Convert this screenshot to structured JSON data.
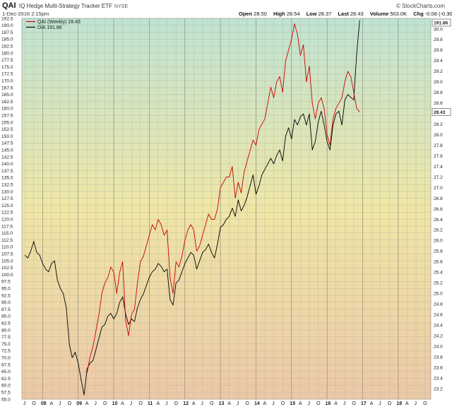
{
  "header": {
    "ticker": "QAI",
    "name": "IQ Hedge Multi-Strategy Tracker ETF",
    "exchange": "NYSE",
    "date": "1-Dec-2016 2:15pm",
    "brand": "© StockCharts.com",
    "quote": [
      {
        "label": "Open",
        "value": "28.50"
      },
      {
        "label": "High",
        "value": "28.54"
      },
      {
        "label": "Low",
        "value": "28.37"
      },
      {
        "label": "Last",
        "value": "28.43"
      },
      {
        "label": "Volume",
        "value": "503.0K"
      },
      {
        "label": "Chg",
        "value": "-0.08 (-0.30%)"
      }
    ]
  },
  "chart_data": {
    "type": "line",
    "title": "QAI IQ Hedge Multi-Strategy Tracker ETF",
    "legend": {
      "placement": "top-left",
      "entries": [
        "QAI (Weekly) 28.43",
        "DIA 191.86"
      ]
    },
    "grid": true,
    "left_axis": {
      "series": "DIA",
      "range": [
        55.0,
        192.5
      ],
      "ticks": [
        "192.5",
        "190.0",
        "187.5",
        "185.0",
        "182.5",
        "180.0",
        "177.5",
        "175.0",
        "172.5",
        "170.0",
        "167.5",
        "165.0",
        "162.5",
        "160.0",
        "157.5",
        "155.0",
        "152.5",
        "150.0",
        "147.5",
        "145.0",
        "142.5",
        "140.0",
        "137.5",
        "135.0",
        "132.5",
        "130.0",
        "127.5",
        "125.0",
        "122.5",
        "120.0",
        "117.5",
        "115.0",
        "112.5",
        "110.0",
        "107.5",
        "105.0",
        "102.5",
        "100.0",
        "97.5",
        "95.0",
        "92.5",
        "90.0",
        "87.5",
        "85.0",
        "82.5",
        "80.0",
        "77.5",
        "75.0",
        "72.5",
        "70.0",
        "67.5",
        "65.0",
        "62.5",
        "60.0",
        "57.5",
        "55.0"
      ]
    },
    "right_axis": {
      "series": "QAI",
      "range": [
        23.0,
        30.2
      ],
      "ticks": [
        "30.0",
        "29.8",
        "29.6",
        "29.4",
        "29.2",
        "29.0",
        "28.8",
        "28.6",
        "28.4",
        "28.2",
        "28.0",
        "27.8",
        "27.6",
        "27.4",
        "27.2",
        "27.0",
        "26.8",
        "26.6",
        "26.4",
        "26.2",
        "26.0",
        "25.8",
        "25.6",
        "25.4",
        "25.2",
        "25.0",
        "24.8",
        "24.6",
        "24.4",
        "24.2",
        "24.0",
        "23.8",
        "23.6",
        "23.4",
        "23.2"
      ]
    },
    "x_axis": {
      "ticks": [
        "J",
        "O",
        "08",
        "A",
        "J",
        "O",
        "09",
        "A",
        "J",
        "O",
        "10",
        "A",
        "J",
        "O",
        "11",
        "A",
        "J",
        "O",
        "12",
        "A",
        "J",
        "O",
        "13",
        "A",
        "J",
        "O",
        "14",
        "A",
        "J",
        "O",
        "15",
        "A",
        "J",
        "O",
        "16",
        "A",
        "J",
        "O",
        "17",
        "A",
        "J",
        "O",
        "18",
        "A",
        "J",
        "O"
      ],
      "year_ticks": [
        "08",
        "09",
        "10",
        "11",
        "12",
        "13",
        "14",
        "15",
        "16",
        "17",
        "18"
      ]
    },
    "last_labels": {
      "DIA": "191.86",
      "QAI": "28.43"
    },
    "series": [
      {
        "name": "DIA",
        "color": "#000000",
        "axis": "left",
        "points": [
          [
            "2007-07",
            107.0
          ],
          [
            "2007-08",
            106.0
          ],
          [
            "2007-09",
            108.5
          ],
          [
            "2007-10",
            112.0
          ],
          [
            "2007-11",
            108.0
          ],
          [
            "2007-12",
            107.0
          ],
          [
            "2008-01",
            104.0
          ],
          [
            "2008-02",
            102.0
          ],
          [
            "2008-03",
            101.0
          ],
          [
            "2008-04",
            104.0
          ],
          [
            "2008-05",
            105.0
          ],
          [
            "2008-06",
            98.0
          ],
          [
            "2008-07",
            95.0
          ],
          [
            "2008-08",
            93.0
          ],
          [
            "2008-09",
            88.0
          ],
          [
            "2008-10",
            75.0
          ],
          [
            "2008-11",
            70.0
          ],
          [
            "2008-12",
            72.0
          ],
          [
            "2009-01",
            68.0
          ],
          [
            "2009-02",
            62.0
          ],
          [
            "2009-03",
            56.5
          ],
          [
            "2009-04",
            66.0
          ],
          [
            "2009-05",
            68.0
          ],
          [
            "2009-06",
            69.0
          ],
          [
            "2009-07",
            73.0
          ],
          [
            "2009-08",
            77.0
          ],
          [
            "2009-09",
            81.0
          ],
          [
            "2009-10",
            82.0
          ],
          [
            "2009-11",
            85.0
          ],
          [
            "2009-12",
            86.0
          ],
          [
            "2010-01",
            84.0
          ],
          [
            "2010-02",
            86.0
          ],
          [
            "2010-03",
            90.0
          ],
          [
            "2010-04",
            92.0
          ],
          [
            "2010-05",
            86.0
          ],
          [
            "2010-06",
            82.0
          ],
          [
            "2010-07",
            84.0
          ],
          [
            "2010-08",
            83.0
          ],
          [
            "2010-09",
            88.0
          ],
          [
            "2010-10",
            91.0
          ],
          [
            "2010-11",
            93.0
          ],
          [
            "2010-12",
            96.0
          ],
          [
            "2011-01",
            99.0
          ],
          [
            "2011-02",
            101.0
          ],
          [
            "2011-03",
            102.0
          ],
          [
            "2011-04",
            104.0
          ],
          [
            "2011-05",
            103.0
          ],
          [
            "2011-06",
            101.0
          ],
          [
            "2011-07",
            102.0
          ],
          [
            "2011-08",
            91.0
          ],
          [
            "2011-09",
            89.0
          ],
          [
            "2011-10",
            97.0
          ],
          [
            "2011-11",
            98.0
          ],
          [
            "2011-12",
            101.0
          ],
          [
            "2012-01",
            104.0
          ],
          [
            "2012-02",
            106.0
          ],
          [
            "2012-03",
            108.0
          ],
          [
            "2012-04",
            107.0
          ],
          [
            "2012-05",
            102.0
          ],
          [
            "2012-06",
            105.0
          ],
          [
            "2012-07",
            108.0
          ],
          [
            "2012-08",
            109.0
          ],
          [
            "2012-09",
            111.0
          ],
          [
            "2012-10",
            108.0
          ],
          [
            "2012-11",
            106.0
          ],
          [
            "2012-12",
            111.0
          ],
          [
            "2013-01",
            117.0
          ],
          [
            "2013-02",
            118.0
          ],
          [
            "2013-03",
            120.0
          ],
          [
            "2013-04",
            121.0
          ],
          [
            "2013-05",
            124.0
          ],
          [
            "2013-06",
            121.0
          ],
          [
            "2013-07",
            127.0
          ],
          [
            "2013-08",
            123.0
          ],
          [
            "2013-09",
            125.0
          ],
          [
            "2013-10",
            128.0
          ],
          [
            "2013-11",
            132.0
          ],
          [
            "2013-12",
            136.0
          ],
          [
            "2014-01",
            129.0
          ],
          [
            "2014-02",
            132.0
          ],
          [
            "2014-03",
            136.0
          ],
          [
            "2014-04",
            138.0
          ],
          [
            "2014-05",
            140.0
          ],
          [
            "2014-06",
            142.0
          ],
          [
            "2014-07",
            140.0
          ],
          [
            "2014-08",
            143.0
          ],
          [
            "2014-09",
            145.0
          ],
          [
            "2014-10",
            141.0
          ],
          [
            "2014-11",
            150.0
          ],
          [
            "2014-12",
            153.0
          ],
          [
            "2015-01",
            149.0
          ],
          [
            "2015-02",
            156.0
          ],
          [
            "2015-03",
            154.0
          ],
          [
            "2015-04",
            157.0
          ],
          [
            "2015-05",
            158.0
          ],
          [
            "2015-06",
            154.0
          ],
          [
            "2015-07",
            158.0
          ],
          [
            "2015-08",
            145.0
          ],
          [
            "2015-09",
            148.0
          ],
          [
            "2015-10",
            155.0
          ],
          [
            "2015-11",
            159.0
          ],
          [
            "2015-12",
            154.0
          ],
          [
            "2016-01",
            148.0
          ],
          [
            "2016-02",
            145.0
          ],
          [
            "2016-03",
            154.0
          ],
          [
            "2016-04",
            158.0
          ],
          [
            "2016-05",
            159.0
          ],
          [
            "2016-06",
            154.0
          ],
          [
            "2016-07",
            163.0
          ],
          [
            "2016-08",
            165.0
          ],
          [
            "2016-09",
            164.0
          ],
          [
            "2016-10",
            163.0
          ],
          [
            "2016-11",
            180.0
          ],
          [
            "2016-12",
            191.86
          ]
        ]
      },
      {
        "name": "QAI",
        "color": "#cc0000",
        "axis": "right",
        "points": [
          [
            "2009-04",
            23.5
          ],
          [
            "2009-05",
            23.8
          ],
          [
            "2009-06",
            24.0
          ],
          [
            "2009-07",
            24.3
          ],
          [
            "2009-08",
            24.6
          ],
          [
            "2009-09",
            25.0
          ],
          [
            "2009-10",
            25.2
          ],
          [
            "2009-11",
            25.3
          ],
          [
            "2009-12",
            25.5
          ],
          [
            "2010-01",
            25.4
          ],
          [
            "2010-02",
            25.0
          ],
          [
            "2010-03",
            25.4
          ],
          [
            "2010-04",
            25.6
          ],
          [
            "2010-05",
            24.5
          ],
          [
            "2010-06",
            24.2
          ],
          [
            "2010-07",
            24.6
          ],
          [
            "2010-08",
            24.7
          ],
          [
            "2010-09",
            25.2
          ],
          [
            "2010-10",
            25.6
          ],
          [
            "2010-11",
            25.7
          ],
          [
            "2010-12",
            25.9
          ],
          [
            "2011-01",
            26.1
          ],
          [
            "2011-02",
            26.3
          ],
          [
            "2011-03",
            26.2
          ],
          [
            "2011-04",
            26.4
          ],
          [
            "2011-05",
            26.3
          ],
          [
            "2011-06",
            26.1
          ],
          [
            "2011-07",
            26.2
          ],
          [
            "2011-08",
            25.3
          ],
          [
            "2011-09",
            25.0
          ],
          [
            "2011-10",
            25.6
          ],
          [
            "2011-11",
            25.5
          ],
          [
            "2011-12",
            25.7
          ],
          [
            "2012-01",
            26.0
          ],
          [
            "2012-02",
            26.2
          ],
          [
            "2012-03",
            26.3
          ],
          [
            "2012-04",
            26.2
          ],
          [
            "2012-05",
            25.8
          ],
          [
            "2012-06",
            25.9
          ],
          [
            "2012-07",
            26.1
          ],
          [
            "2012-08",
            26.3
          ],
          [
            "2012-09",
            26.5
          ],
          [
            "2012-10",
            26.4
          ],
          [
            "2012-11",
            26.4
          ],
          [
            "2012-12",
            26.6
          ],
          [
            "2013-01",
            27.0
          ],
          [
            "2013-02",
            27.1
          ],
          [
            "2013-03",
            27.2
          ],
          [
            "2013-04",
            27.2
          ],
          [
            "2013-05",
            27.4
          ],
          [
            "2013-06",
            26.8
          ],
          [
            "2013-07",
            27.1
          ],
          [
            "2013-08",
            26.9
          ],
          [
            "2013-09",
            27.3
          ],
          [
            "2013-10",
            27.5
          ],
          [
            "2013-11",
            27.7
          ],
          [
            "2013-12",
            27.9
          ],
          [
            "2014-01",
            27.8
          ],
          [
            "2014-02",
            28.1
          ],
          [
            "2014-03",
            28.2
          ],
          [
            "2014-04",
            28.3
          ],
          [
            "2014-05",
            28.6
          ],
          [
            "2014-06",
            28.9
          ],
          [
            "2014-07",
            28.7
          ],
          [
            "2014-08",
            29.0
          ],
          [
            "2014-09",
            29.1
          ],
          [
            "2014-10",
            28.8
          ],
          [
            "2014-11",
            29.4
          ],
          [
            "2014-12",
            29.6
          ],
          [
            "2015-01",
            29.8
          ],
          [
            "2015-02",
            30.1
          ],
          [
            "2015-03",
            29.9
          ],
          [
            "2015-04",
            29.5
          ],
          [
            "2015-05",
            29.7
          ],
          [
            "2015-06",
            29.0
          ],
          [
            "2015-07",
            29.3
          ],
          [
            "2015-08",
            28.6
          ],
          [
            "2015-09",
            28.3
          ],
          [
            "2015-10",
            28.6
          ],
          [
            "2015-11",
            28.7
          ],
          [
            "2015-12",
            28.5
          ],
          [
            "2016-01",
            28.0
          ],
          [
            "2016-02",
            27.8
          ],
          [
            "2016-03",
            28.3
          ],
          [
            "2016-04",
            28.5
          ],
          [
            "2016-05",
            28.6
          ],
          [
            "2016-06",
            28.7
          ],
          [
            "2016-07",
            29.0
          ],
          [
            "2016-08",
            29.2
          ],
          [
            "2016-09",
            29.1
          ],
          [
            "2016-10",
            28.8
          ],
          [
            "2016-11",
            28.5
          ],
          [
            "2016-12",
            28.43
          ]
        ]
      }
    ]
  }
}
